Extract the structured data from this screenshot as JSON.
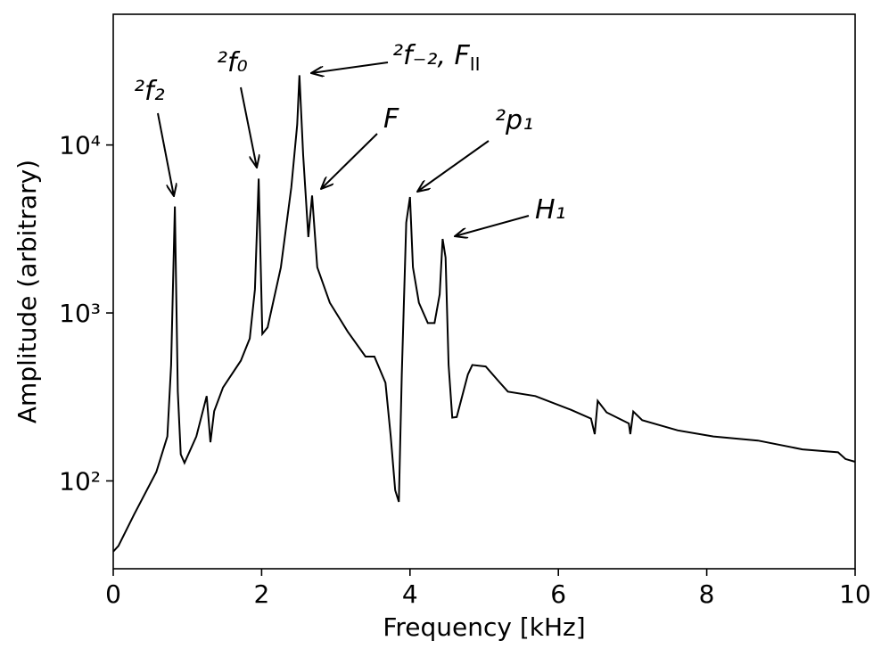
{
  "chart_data": {
    "type": "line",
    "x_label": "Frequency [kHz]",
    "y_label": "Amplitude (arbitrary)",
    "y_scale": "log",
    "xlim": [
      0,
      10
    ],
    "ylim": [
      30,
      60000
    ],
    "xticks": [
      0,
      2,
      4,
      6,
      8,
      10
    ],
    "yticks": [
      {
        "value": 100,
        "label": "10²"
      },
      {
        "value": 1000,
        "label": "10³"
      },
      {
        "value": 10000,
        "label": "10⁴"
      }
    ],
    "color": "#000000",
    "x": [
      0.0,
      0.07,
      0.28,
      0.58,
      0.73,
      0.78,
      0.83,
      0.87,
      0.91,
      0.96,
      1.12,
      1.26,
      1.31,
      1.36,
      1.48,
      1.72,
      1.84,
      1.91,
      1.96,
      2.01,
      2.08,
      2.26,
      2.4,
      2.48,
      2.51,
      2.56,
      2.63,
      2.68,
      2.75,
      2.92,
      3.16,
      3.4,
      3.52,
      3.67,
      3.74,
      3.8,
      3.85,
      3.89,
      3.95,
      4.0,
      4.04,
      4.12,
      4.24,
      4.33,
      4.4,
      4.44,
      4.48,
      4.52,
      4.57,
      4.63,
      4.78,
      4.84,
      5.02,
      5.2,
      5.32,
      5.69,
      6.17,
      6.44,
      6.49,
      6.53,
      6.65,
      6.95,
      6.97,
      7.01,
      7.13,
      7.61,
      8.09,
      8.69,
      9.29,
      9.77,
      9.87,
      10.0
    ],
    "values": [
      38,
      41,
      63,
      113,
      184,
      490,
      4300,
      340,
      144,
      128,
      184,
      320,
      170,
      260,
      360,
      520,
      705,
      1380,
      6300,
      750,
      820,
      1870,
      5600,
      13200,
      26000,
      8700,
      2830,
      5000,
      1870,
      1150,
      775,
      550,
      550,
      384,
      184,
      88,
      75,
      430,
      3450,
      4900,
      1870,
      1150,
      870,
      870,
      1290,
      2760,
      2140,
      490,
      238,
      240,
      430,
      490,
      480,
      390,
      340,
      320,
      265,
      235,
      190,
      300,
      256,
      220,
      190,
      259,
      230,
      200,
      184,
      174,
      154,
      148,
      135,
      130
    ],
    "annotations": [
      "²f₂",
      "²f₀",
      "²f₋₂, F_II",
      "F",
      "²p₁",
      "H₁"
    ]
  }
}
